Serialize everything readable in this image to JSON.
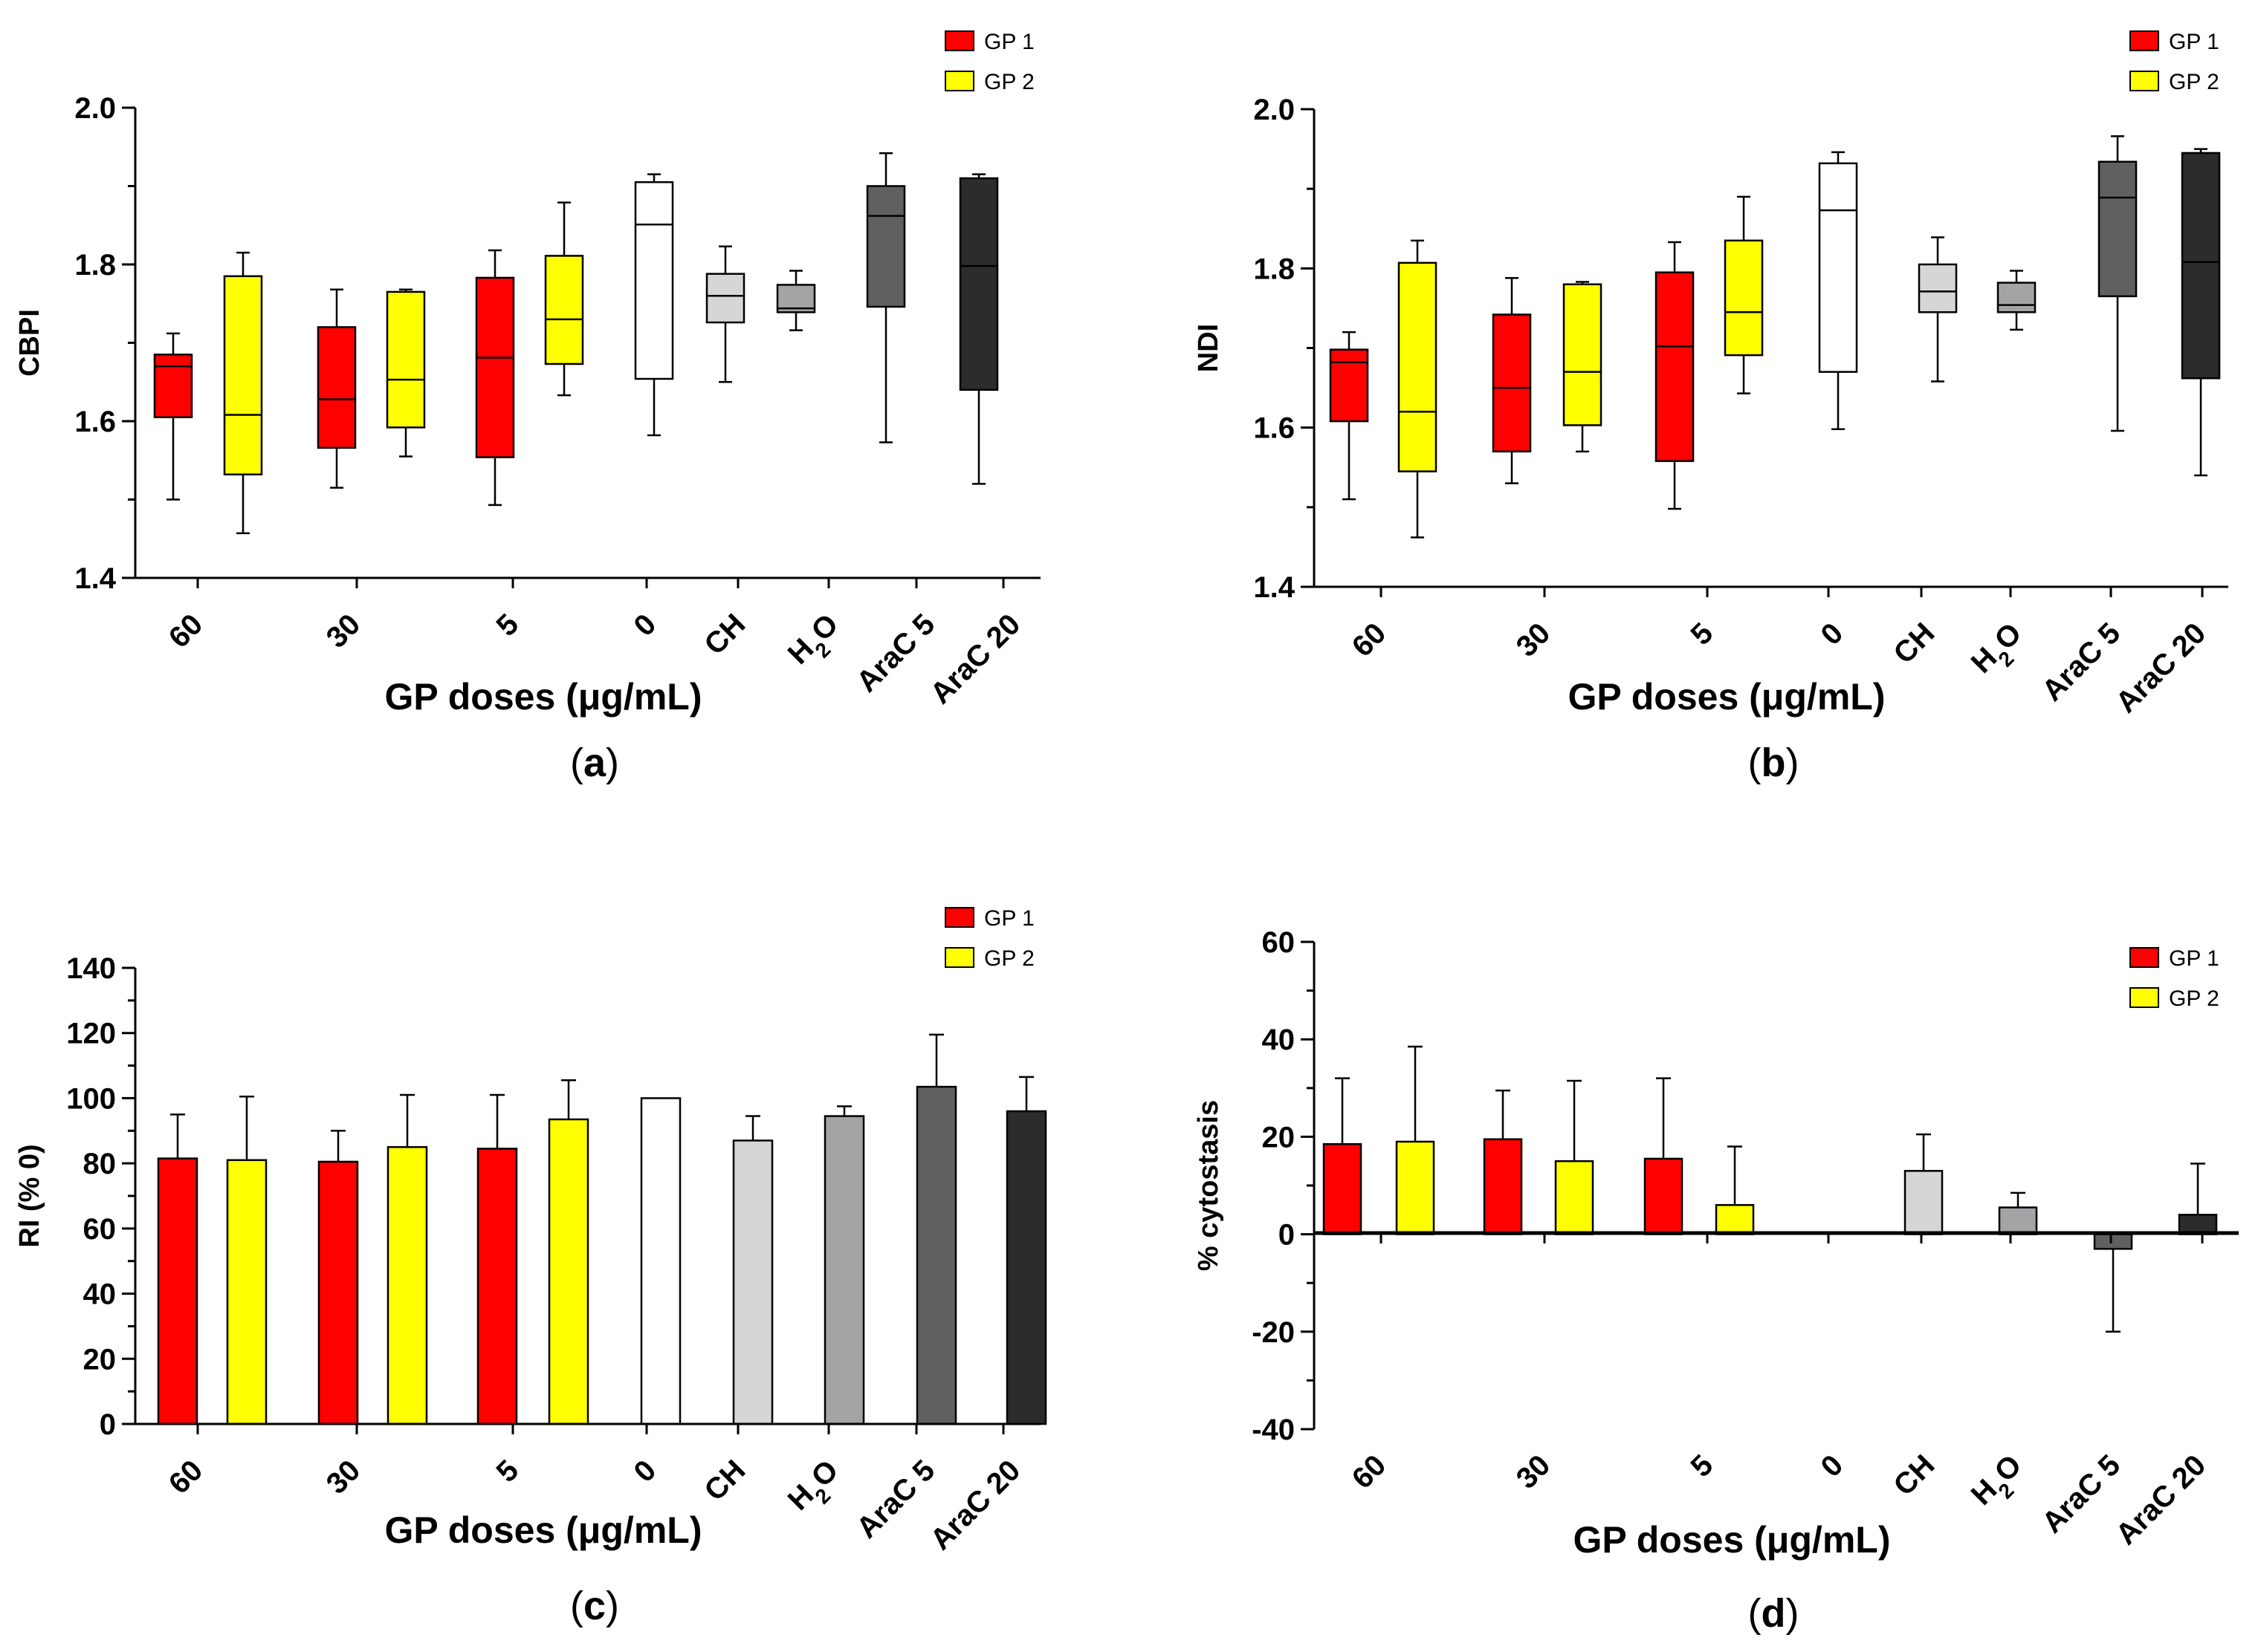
{
  "figure_captions": [
    "(a)",
    "(b)",
    "(c)",
    "(d)"
  ],
  "colors": {
    "GP 1": "#ff0000",
    "GP 2": "#ffff00",
    "0": "#ffffff",
    "CH": "#d6d6d6",
    "H2O": "#a4a4a6",
    "AraC 5": "#606060",
    "AraC 20": "#2c2c2c"
  },
  "chart_data": [
    {
      "id": "a",
      "type": "box",
      "caption_letter": "a",
      "ylabel": "CBPI",
      "xlabel": "GP doses (μg/mL)",
      "ylim": [
        1.4,
        2.0
      ],
      "yticks": [
        "1.4",
        "1.6",
        "1.8",
        "2.0"
      ],
      "categories": [
        "60",
        "30",
        "5",
        "0",
        "CH",
        "H2O",
        "AraC 5",
        "AraC 20"
      ],
      "legend": [
        "GP 1",
        "GP 2"
      ],
      "boxes": [
        {
          "group": "60",
          "series": "GP 1",
          "min": 1.5,
          "q1": 1.605,
          "median": 1.67,
          "q3": 1.685,
          "max": 1.712
        },
        {
          "group": "60",
          "series": "GP 2",
          "min": 1.457,
          "q1": 1.532,
          "median": 1.608,
          "q3": 1.785,
          "max": 1.815
        },
        {
          "group": "30",
          "series": "GP 1",
          "min": 1.515,
          "q1": 1.566,
          "median": 1.628,
          "q3": 1.72,
          "max": 1.768
        },
        {
          "group": "30",
          "series": "GP 2",
          "min": 1.555,
          "q1": 1.592,
          "median": 1.653,
          "q3": 1.765,
          "max": 1.768
        },
        {
          "group": "5",
          "series": "GP 1",
          "min": 1.493,
          "q1": 1.554,
          "median": 1.681,
          "q3": 1.783,
          "max": 1.818
        },
        {
          "group": "5",
          "series": "GP 2",
          "min": 1.633,
          "q1": 1.673,
          "median": 1.73,
          "q3": 1.811,
          "max": 1.879
        },
        {
          "group": "0",
          "series": "0",
          "min": 1.582,
          "q1": 1.654,
          "median": 1.851,
          "q3": 1.905,
          "max": 1.915
        },
        {
          "group": "CH",
          "series": "CH",
          "min": 1.65,
          "q1": 1.726,
          "median": 1.76,
          "q3": 1.788,
          "max": 1.823
        },
        {
          "group": "H2O",
          "series": "H2O",
          "min": 1.716,
          "q1": 1.739,
          "median": 1.744,
          "q3": 1.774,
          "max": 1.792
        },
        {
          "group": "AraC 5",
          "series": "AraC 5",
          "min": 1.573,
          "q1": 1.746,
          "median": 1.862,
          "q3": 1.9,
          "max": 1.942
        },
        {
          "group": "AraC 20",
          "series": "AraC 20",
          "min": 1.52,
          "q1": 1.64,
          "median": 1.798,
          "q3": 1.91,
          "max": 1.915
        }
      ]
    },
    {
      "id": "b",
      "type": "box",
      "caption_letter": "b",
      "ylabel": "NDI",
      "xlabel": "GP doses (μg/mL)",
      "ylim": [
        1.4,
        2.0
      ],
      "yticks": [
        "1.4",
        "1.6",
        "1.8",
        "2.0"
      ],
      "categories": [
        "60",
        "30",
        "5",
        "0",
        "CH",
        "H2O",
        "AraC 5",
        "AraC 20"
      ],
      "legend": [
        "GP 1",
        "GP 2"
      ],
      "boxes": [
        {
          "group": "60",
          "series": "GP 1",
          "min": 1.51,
          "q1": 1.608,
          "median": 1.682,
          "q3": 1.698,
          "max": 1.72
        },
        {
          "group": "60",
          "series": "GP 2",
          "min": 1.462,
          "q1": 1.545,
          "median": 1.62,
          "q3": 1.807,
          "max": 1.835
        },
        {
          "group": "30",
          "series": "GP 1",
          "min": 1.53,
          "q1": 1.57,
          "median": 1.65,
          "q3": 1.742,
          "max": 1.788
        },
        {
          "group": "30",
          "series": "GP 2",
          "min": 1.57,
          "q1": 1.603,
          "median": 1.67,
          "q3": 1.78,
          "max": 1.783
        },
        {
          "group": "5",
          "series": "GP 1",
          "min": 1.498,
          "q1": 1.558,
          "median": 1.702,
          "q3": 1.795,
          "max": 1.833
        },
        {
          "group": "5",
          "series": "GP 2",
          "min": 1.643,
          "q1": 1.691,
          "median": 1.745,
          "q3": 1.835,
          "max": 1.89
        },
        {
          "group": "0",
          "series": "0",
          "min": 1.598,
          "q1": 1.67,
          "median": 1.873,
          "q3": 1.932,
          "max": 1.946
        },
        {
          "group": "CH",
          "series": "CH",
          "min": 1.658,
          "q1": 1.745,
          "median": 1.771,
          "q3": 1.805,
          "max": 1.839
        },
        {
          "group": "H2O",
          "series": "H2O",
          "min": 1.723,
          "q1": 1.745,
          "median": 1.754,
          "q3": 1.782,
          "max": 1.797
        },
        {
          "group": "AraC 5",
          "series": "AraC 5",
          "min": 1.596,
          "q1": 1.765,
          "median": 1.889,
          "q3": 1.934,
          "max": 1.966
        },
        {
          "group": "AraC 20",
          "series": "AraC 20",
          "min": 1.54,
          "q1": 1.662,
          "median": 1.808,
          "q3": 1.945,
          "max": 1.95
        }
      ]
    },
    {
      "id": "c",
      "type": "bar",
      "caption_letter": "c",
      "ylabel": "RI (% 0)",
      "xlabel": "GP doses (μg/mL)",
      "ylim": [
        0,
        140
      ],
      "yticks": [
        "0",
        "20",
        "40",
        "60",
        "80",
        "100",
        "120",
        "140"
      ],
      "categories": [
        "60",
        "30",
        "5",
        "0",
        "CH",
        "H2O",
        "AraC 5",
        "AraC 20"
      ],
      "legend": [
        "GP 1",
        "GP 2"
      ],
      "bars": [
        {
          "group": "60",
          "series": "GP 1",
          "value": 81.5,
          "error": 13.5
        },
        {
          "group": "60",
          "series": "GP 2",
          "value": 81,
          "error": 19.5
        },
        {
          "group": "30",
          "series": "GP 1",
          "value": 80.5,
          "error": 9.5
        },
        {
          "group": "30",
          "series": "GP 2",
          "value": 85,
          "error": 16
        },
        {
          "group": "5",
          "series": "GP 1",
          "value": 84.5,
          "error": 16.5
        },
        {
          "group": "5",
          "series": "GP 2",
          "value": 93.5,
          "error": 12
        },
        {
          "group": "0",
          "series": "0",
          "value": 100,
          "error": 0
        },
        {
          "group": "CH",
          "series": "CH",
          "value": 87,
          "error": 7.5
        },
        {
          "group": "H2O",
          "series": "H2O",
          "value": 94.5,
          "error": 3
        },
        {
          "group": "AraC 5",
          "series": "AraC 5",
          "value": 103.5,
          "error": 16
        },
        {
          "group": "AraC 20",
          "series": "AraC 20",
          "value": 96,
          "error": 10.5
        }
      ]
    },
    {
      "id": "d",
      "type": "bar",
      "caption_letter": "d",
      "ylabel": "% cytostasis",
      "xlabel": "GP doses (μg/mL)",
      "ylim": [
        -40,
        60
      ],
      "yticks": [
        "-40",
        "-20",
        "0",
        "20",
        "40",
        "60"
      ],
      "categories": [
        "60",
        "30",
        "5",
        "0",
        "CH",
        "H2O",
        "AraC 5",
        "AraC 20"
      ],
      "legend": [
        "GP 1",
        "GP 2"
      ],
      "bars": [
        {
          "group": "60",
          "series": "GP 1",
          "value": 18.5,
          "error": 13.5
        },
        {
          "group": "60",
          "series": "GP 2",
          "value": 19,
          "error": 19.5
        },
        {
          "group": "30",
          "series": "GP 1",
          "value": 19.5,
          "error": 10
        },
        {
          "group": "30",
          "series": "GP 2",
          "value": 15,
          "error": 16.5
        },
        {
          "group": "5",
          "series": "GP 1",
          "value": 15.5,
          "error": 16.5
        },
        {
          "group": "5",
          "series": "GP 2",
          "value": 6,
          "error": 12
        },
        {
          "group": "0",
          "series": "0",
          "value": 0,
          "error": 0
        },
        {
          "group": "CH",
          "series": "CH",
          "value": 13,
          "error": 7.5
        },
        {
          "group": "H2O",
          "series": "H2O",
          "value": 5.5,
          "error": 3
        },
        {
          "group": "AraC 5",
          "series": "AraC 5",
          "value": -3,
          "error": 17
        },
        {
          "group": "AraC 20",
          "series": "AraC 20",
          "value": 4,
          "error": 10.5
        }
      ]
    }
  ]
}
